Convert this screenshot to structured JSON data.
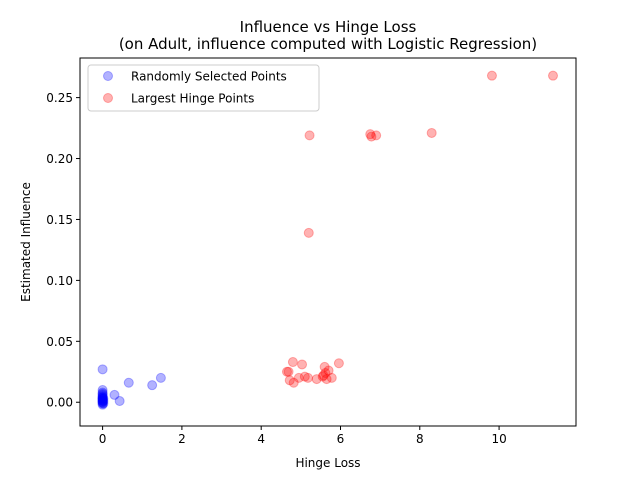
{
  "chart_data": {
    "type": "scatter",
    "title": "Influence vs Hinge Loss",
    "subtitle": "(on Adult, influence computed with Logistic Regression)",
    "xlabel": "Hinge Loss",
    "ylabel": "Estimated Influence",
    "xlim": [
      -0.57,
      11.94
    ],
    "ylim": [
      -0.0195,
      0.2825
    ],
    "x_ticks": [
      0,
      2,
      4,
      6,
      8,
      10
    ],
    "y_ticks": [
      0.0,
      0.05,
      0.1,
      0.15,
      0.2,
      0.25
    ],
    "x_tick_labels": [
      "0",
      "2",
      "4",
      "6",
      "8",
      "10"
    ],
    "y_tick_labels": [
      "0.00",
      "0.05",
      "0.10",
      "0.15",
      "0.20",
      "0.25"
    ],
    "grid": false,
    "legend_position": "top-left",
    "series": [
      {
        "name": "Randomly Selected Points",
        "color": "#0000ff",
        "alpha": 0.3,
        "points": [
          [
            0.0,
            0.027
          ],
          [
            0.0,
            0.01
          ],
          [
            0.0,
            0.008
          ],
          [
            0.0,
            0.007
          ],
          [
            0.0,
            0.006
          ],
          [
            0.0,
            0.005
          ],
          [
            0.0,
            0.004
          ],
          [
            0.0,
            0.004
          ],
          [
            0.0,
            0.003
          ],
          [
            0.0,
            0.003
          ],
          [
            0.0,
            0.002
          ],
          [
            0.0,
            0.002
          ],
          [
            0.0,
            0.001
          ],
          [
            0.0,
            0.001
          ],
          [
            0.0,
            0.0
          ],
          [
            0.0,
            0.0
          ],
          [
            0.0,
            -0.001
          ],
          [
            0.0,
            -0.002
          ],
          [
            0.02,
            0.001
          ],
          [
            0.02,
            -0.001
          ],
          [
            0.02,
            0.003
          ],
          [
            0.3,
            0.006
          ],
          [
            0.43,
            0.001
          ],
          [
            0.66,
            0.016
          ],
          [
            1.25,
            0.014
          ],
          [
            1.47,
            0.02
          ]
        ]
      },
      {
        "name": "Largest Hinge Points",
        "color": "#ff0000",
        "alpha": 0.3,
        "points": [
          [
            9.82,
            0.268
          ],
          [
            11.36,
            0.268
          ],
          [
            5.22,
            0.219
          ],
          [
            6.75,
            0.22
          ],
          [
            6.78,
            0.218
          ],
          [
            6.9,
            0.219
          ],
          [
            8.3,
            0.221
          ],
          [
            5.2,
            0.139
          ],
          [
            4.65,
            0.025
          ],
          [
            4.69,
            0.025
          ],
          [
            4.72,
            0.018
          ],
          [
            4.8,
            0.033
          ],
          [
            4.82,
            0.016
          ],
          [
            4.95,
            0.02
          ],
          [
            5.03,
            0.031
          ],
          [
            5.1,
            0.021
          ],
          [
            5.18,
            0.02
          ],
          [
            5.4,
            0.019
          ],
          [
            5.55,
            0.021
          ],
          [
            5.57,
            0.022
          ],
          [
            5.6,
            0.029
          ],
          [
            5.62,
            0.024
          ],
          [
            5.65,
            0.019
          ],
          [
            5.7,
            0.026
          ],
          [
            5.78,
            0.02
          ],
          [
            5.96,
            0.032
          ]
        ]
      }
    ]
  }
}
